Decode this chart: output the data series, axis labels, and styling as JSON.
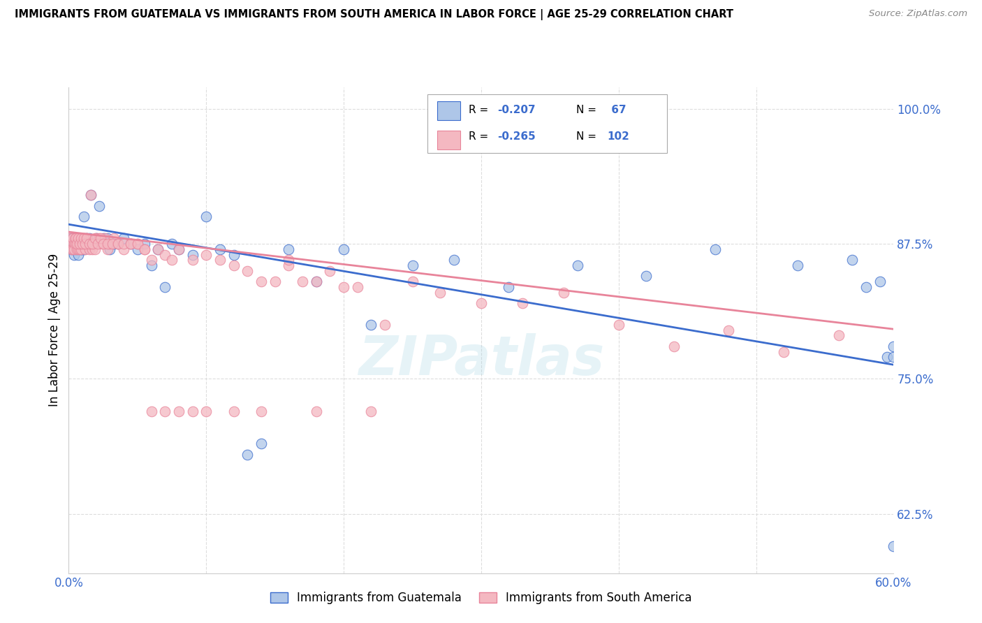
{
  "title": "IMMIGRANTS FROM GUATEMALA VS IMMIGRANTS FROM SOUTH AMERICA IN LABOR FORCE | AGE 25-29 CORRELATION CHART",
  "source": "Source: ZipAtlas.com",
  "ylabel": "In Labor Force | Age 25-29",
  "xlim": [
    0.0,
    0.6
  ],
  "ylim": [
    0.57,
    1.02
  ],
  "yticks": [
    0.625,
    0.75,
    0.875,
    1.0
  ],
  "ytick_labels": [
    "62.5%",
    "75.0%",
    "87.5%",
    "100.0%"
  ],
  "xticks": [
    0.0,
    0.1,
    0.2,
    0.3,
    0.4,
    0.5,
    0.6
  ],
  "xtick_labels": [
    "0.0%",
    "",
    "",
    "",
    "",
    "",
    "60.0%"
  ],
  "color_blue": "#aec6e8",
  "color_pink": "#f4b8c1",
  "color_blue_line": "#3b6ccd",
  "color_pink_line": "#e8849a",
  "color_axis": "#3b6ccd",
  "watermark": "ZIPatlas",
  "blue_x": [
    0.001,
    0.002,
    0.002,
    0.003,
    0.003,
    0.004,
    0.004,
    0.005,
    0.005,
    0.006,
    0.006,
    0.007,
    0.007,
    0.008,
    0.008,
    0.009,
    0.009,
    0.01,
    0.01,
    0.011,
    0.011,
    0.012,
    0.013,
    0.014,
    0.015,
    0.016,
    0.018,
    0.02,
    0.022,
    0.025,
    0.028,
    0.03,
    0.033,
    0.036,
    0.04,
    0.045,
    0.05,
    0.055,
    0.06,
    0.065,
    0.07,
    0.075,
    0.08,
    0.09,
    0.1,
    0.11,
    0.12,
    0.13,
    0.14,
    0.16,
    0.18,
    0.2,
    0.22,
    0.25,
    0.28,
    0.32,
    0.37,
    0.42,
    0.47,
    0.53,
    0.57,
    0.58,
    0.59,
    0.595,
    0.6,
    0.6,
    0.6
  ],
  "blue_y": [
    0.875,
    0.88,
    0.87,
    0.88,
    0.87,
    0.875,
    0.865,
    0.88,
    0.87,
    0.88,
    0.87,
    0.875,
    0.865,
    0.875,
    0.88,
    0.87,
    0.875,
    0.875,
    0.87,
    0.87,
    0.9,
    0.875,
    0.88,
    0.875,
    0.88,
    0.92,
    0.875,
    0.88,
    0.91,
    0.88,
    0.88,
    0.87,
    0.875,
    0.875,
    0.88,
    0.875,
    0.87,
    0.875,
    0.855,
    0.87,
    0.835,
    0.875,
    0.87,
    0.865,
    0.9,
    0.87,
    0.865,
    0.68,
    0.69,
    0.87,
    0.84,
    0.87,
    0.8,
    0.855,
    0.86,
    0.835,
    0.855,
    0.845,
    0.87,
    0.855,
    0.86,
    0.835,
    0.84,
    0.77,
    0.77,
    0.78,
    0.595
  ],
  "pink_x": [
    0.001,
    0.002,
    0.002,
    0.003,
    0.003,
    0.004,
    0.004,
    0.005,
    0.005,
    0.006,
    0.006,
    0.007,
    0.007,
    0.008,
    0.008,
    0.009,
    0.009,
    0.01,
    0.01,
    0.011,
    0.012,
    0.012,
    0.013,
    0.014,
    0.015,
    0.016,
    0.017,
    0.018,
    0.019,
    0.02,
    0.022,
    0.024,
    0.026,
    0.028,
    0.03,
    0.033,
    0.036,
    0.04,
    0.045,
    0.05,
    0.055,
    0.06,
    0.065,
    0.07,
    0.075,
    0.08,
    0.09,
    0.1,
    0.11,
    0.12,
    0.13,
    0.14,
    0.15,
    0.16,
    0.17,
    0.18,
    0.19,
    0.2,
    0.21,
    0.23,
    0.25,
    0.27,
    0.3,
    0.33,
    0.36,
    0.4,
    0.44,
    0.48,
    0.52,
    0.56,
    0.005,
    0.006,
    0.007,
    0.008,
    0.009,
    0.01,
    0.011,
    0.012,
    0.013,
    0.015,
    0.017,
    0.019,
    0.021,
    0.023,
    0.025,
    0.028,
    0.032,
    0.036,
    0.04,
    0.045,
    0.05,
    0.055,
    0.06,
    0.07,
    0.08,
    0.09,
    0.1,
    0.12,
    0.14,
    0.16,
    0.18,
    0.22
  ],
  "pink_y": [
    0.88,
    0.875,
    0.87,
    0.88,
    0.87,
    0.875,
    0.87,
    0.88,
    0.875,
    0.88,
    0.87,
    0.875,
    0.87,
    0.875,
    0.87,
    0.875,
    0.87,
    0.88,
    0.875,
    0.88,
    0.875,
    0.87,
    0.88,
    0.875,
    0.87,
    0.92,
    0.87,
    0.875,
    0.87,
    0.88,
    0.88,
    0.875,
    0.88,
    0.87,
    0.875,
    0.88,
    0.875,
    0.87,
    0.875,
    0.875,
    0.87,
    0.86,
    0.87,
    0.865,
    0.86,
    0.87,
    0.86,
    0.865,
    0.86,
    0.855,
    0.85,
    0.84,
    0.84,
    0.855,
    0.84,
    0.84,
    0.85,
    0.835,
    0.835,
    0.8,
    0.84,
    0.83,
    0.82,
    0.82,
    0.83,
    0.8,
    0.78,
    0.795,
    0.775,
    0.79,
    0.88,
    0.875,
    0.88,
    0.875,
    0.88,
    0.875,
    0.88,
    0.875,
    0.88,
    0.875,
    0.875,
    0.88,
    0.875,
    0.88,
    0.875,
    0.875,
    0.875,
    0.875,
    0.875,
    0.875,
    0.875,
    0.87,
    0.72,
    0.72,
    0.72,
    0.72,
    0.72,
    0.72,
    0.72,
    0.86,
    0.72,
    0.72
  ],
  "blue_trend_x": [
    0.0,
    0.6
  ],
  "blue_trend_y": [
    0.893,
    0.763
  ],
  "pink_trend_x": [
    0.0,
    0.6
  ],
  "pink_trend_y": [
    0.886,
    0.796
  ]
}
